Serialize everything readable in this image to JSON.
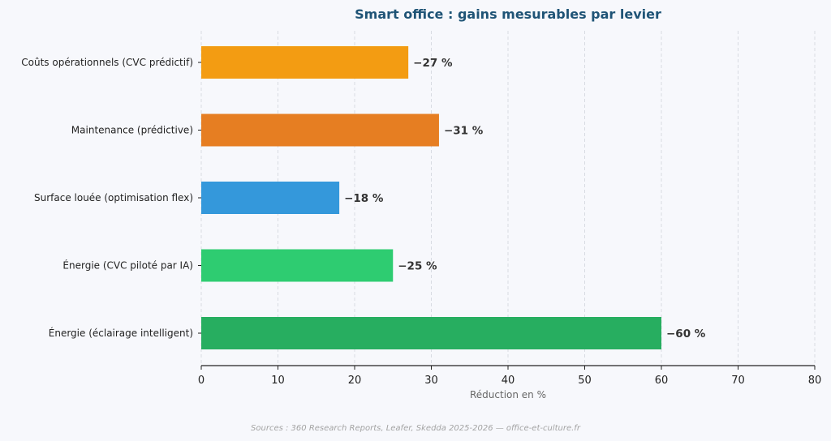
{
  "chart_data": {
    "type": "bar",
    "orientation": "horizontal",
    "title": "Smart office : gains mesurables par levier",
    "xlabel": "Réduction en %",
    "ylabel": "",
    "xlim": [
      0,
      80
    ],
    "xticks": [
      0,
      10,
      20,
      30,
      40,
      50,
      60,
      70,
      80
    ],
    "grid": "vertical dashed",
    "legend": "none",
    "categories": [
      "Coûts opérationnels (CVC prédictif)",
      "Maintenance (prédictive)",
      "Surface louée (optimisation flex)",
      "Énergie (CVC piloté par IA)",
      "Énergie (éclairage intelligent)"
    ],
    "values": [
      27,
      31,
      18,
      25,
      60
    ],
    "data_labels": [
      "−27 %",
      "−31 %",
      "−18 %",
      "−25 %",
      "−60 %"
    ],
    "colors": [
      "#f39c12",
      "#e67e22",
      "#3498db",
      "#2ecc71",
      "#27ae60"
    ],
    "source": "Sources : 360 Research Reports, Leafer, Skedda 2025-2026 — office-et-culture.fr"
  }
}
